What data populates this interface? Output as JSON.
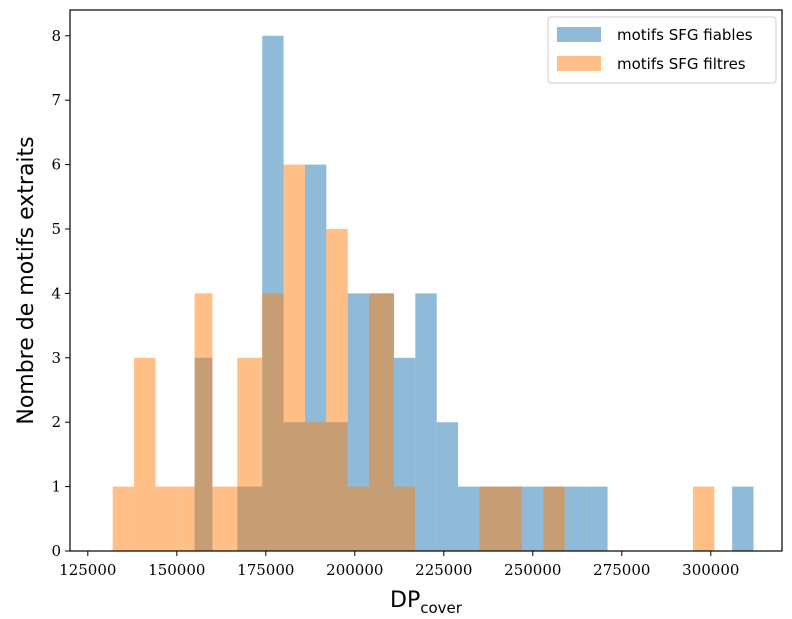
{
  "chart_data": {
    "type": "histogram",
    "title": "",
    "xlabel": "DP",
    "xlabel_sub": "cover",
    "ylabel": "Nombre de motifs extraits",
    "xlim": [
      120000,
      320000
    ],
    "ylim": [
      0,
      8.4
    ],
    "xticks": [
      125000,
      150000,
      175000,
      200000,
      225000,
      250000,
      275000,
      300000
    ],
    "yticks": [
      0,
      1,
      2,
      3,
      4,
      5,
      6,
      7,
      8
    ],
    "grid": false,
    "legend_position": "top-right",
    "series": [
      {
        "name": "motifs SFG fiables",
        "color": "#1f77b4",
        "bins": [
          {
            "x0": 155000,
            "x1": 160000,
            "count": 3
          },
          {
            "x0": 167000,
            "x1": 174000,
            "count": 1
          },
          {
            "x0": 174000,
            "x1": 180000,
            "count": 8
          },
          {
            "x0": 180000,
            "x1": 186000,
            "count": 2
          },
          {
            "x0": 186000,
            "x1": 192000,
            "count": 6
          },
          {
            "x0": 192000,
            "x1": 198000,
            "count": 2
          },
          {
            "x0": 198000,
            "x1": 204000,
            "count": 4
          },
          {
            "x0": 204000,
            "x1": 211000,
            "count": 4
          },
          {
            "x0": 211000,
            "x1": 217000,
            "count": 3
          },
          {
            "x0": 217000,
            "x1": 223000,
            "count": 4
          },
          {
            "x0": 223000,
            "x1": 229000,
            "count": 2
          },
          {
            "x0": 229000,
            "x1": 235000,
            "count": 1
          },
          {
            "x0": 235000,
            "x1": 241000,
            "count": 1
          },
          {
            "x0": 241000,
            "x1": 247000,
            "count": 1
          },
          {
            "x0": 247000,
            "x1": 253000,
            "count": 1
          },
          {
            "x0": 253000,
            "x1": 259000,
            "count": 1
          },
          {
            "x0": 259000,
            "x1": 265000,
            "count": 1
          },
          {
            "x0": 265000,
            "x1": 271000,
            "count": 1
          },
          {
            "x0": 306000,
            "x1": 312000,
            "count": 1
          }
        ]
      },
      {
        "name": "motifs SFG filtres",
        "color": "#ff7f0e",
        "bins": [
          {
            "x0": 132000,
            "x1": 138000,
            "count": 1
          },
          {
            "x0": 138000,
            "x1": 144000,
            "count": 3
          },
          {
            "x0": 144000,
            "x1": 150000,
            "count": 1
          },
          {
            "x0": 150000,
            "x1": 155000,
            "count": 1
          },
          {
            "x0": 155000,
            "x1": 160000,
            "count": 4
          },
          {
            "x0": 160000,
            "x1": 167000,
            "count": 1
          },
          {
            "x0": 167000,
            "x1": 174000,
            "count": 3
          },
          {
            "x0": 174000,
            "x1": 180000,
            "count": 4
          },
          {
            "x0": 180000,
            "x1": 186000,
            "count": 6
          },
          {
            "x0": 186000,
            "x1": 192000,
            "count": 2
          },
          {
            "x0": 192000,
            "x1": 198000,
            "count": 5
          },
          {
            "x0": 198000,
            "x1": 204000,
            "count": 1
          },
          {
            "x0": 204000,
            "x1": 211000,
            "count": 4
          },
          {
            "x0": 211000,
            "x1": 217000,
            "count": 1
          },
          {
            "x0": 235000,
            "x1": 241000,
            "count": 1
          },
          {
            "x0": 241000,
            "x1": 247000,
            "count": 1
          },
          {
            "x0": 253000,
            "x1": 259000,
            "count": 1
          },
          {
            "x0": 295000,
            "x1": 301000,
            "count": 1
          }
        ]
      }
    ]
  }
}
